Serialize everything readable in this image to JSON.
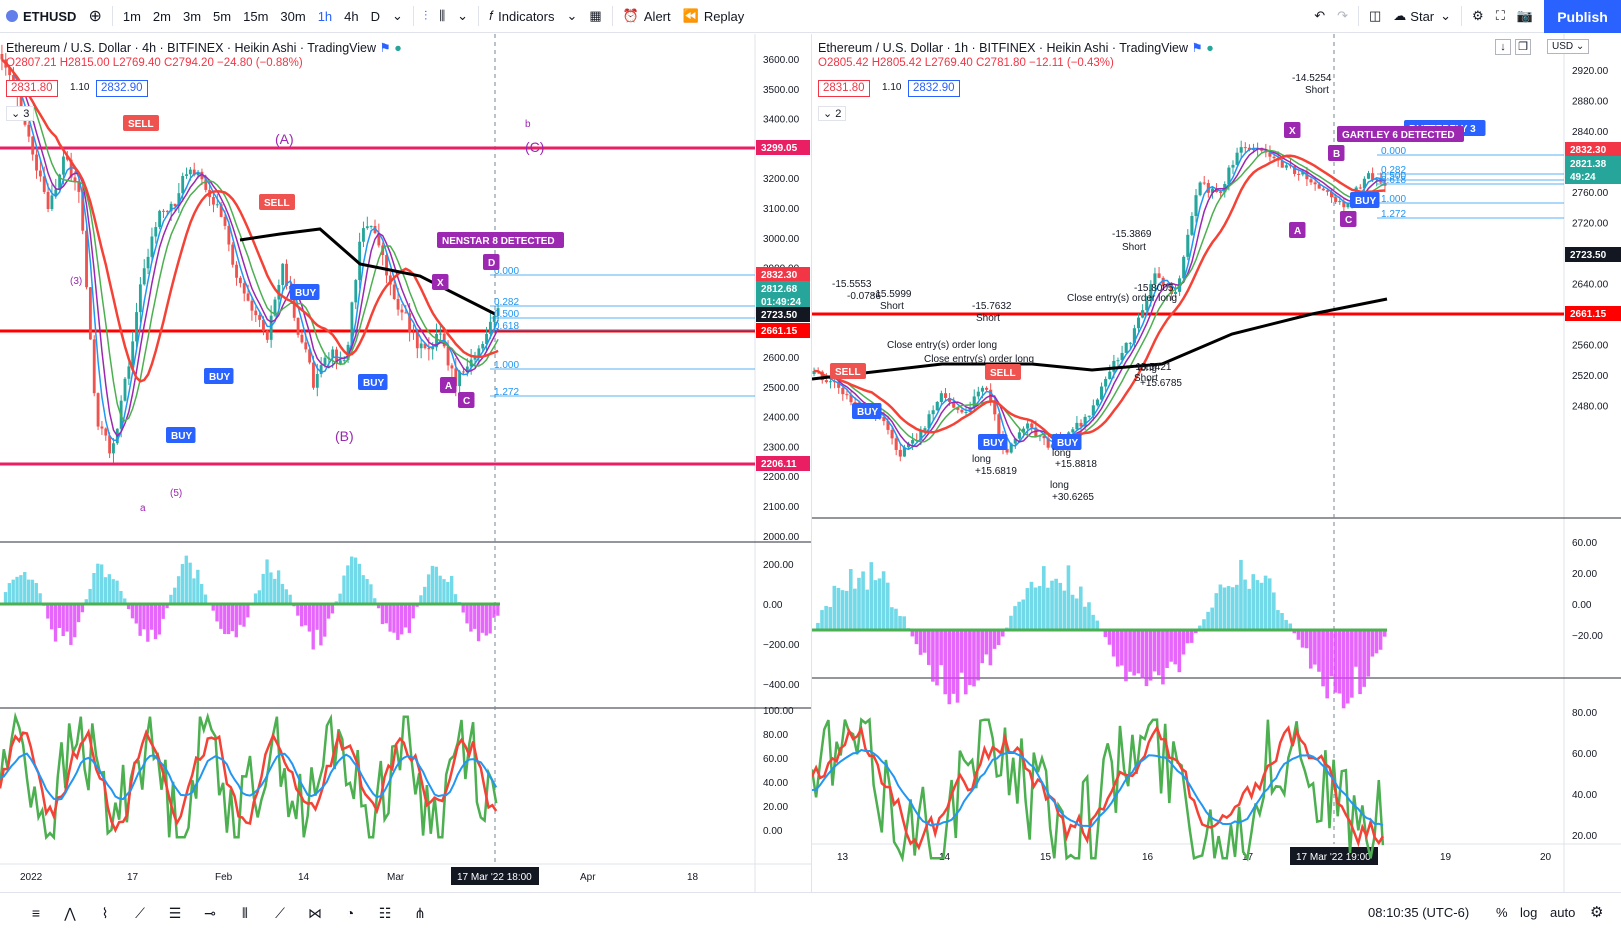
{
  "topbar": {
    "symbol": "ETHUSD",
    "intervals": [
      "1m",
      "2m",
      "3m",
      "5m",
      "15m",
      "30m",
      "1h",
      "4h",
      "D"
    ],
    "indicators_label": "Indicators",
    "alert_label": "Alert",
    "replay_label": "Replay",
    "layout_name": "Star",
    "publish_label": "Publish"
  },
  "left_pane": {
    "title": "Ethereum / U.S. Dollar · 4h · BITFINEX · Heikin Ashi · TradingView",
    "ohlc_o": "O2807.21",
    "ohlc_h": "H2815.00",
    "ohlc_l": "L2769.40",
    "ohlc_c": "C2794.20",
    "ohlc_chg": "−24.80 (−0.88%)",
    "bid": "2831.80",
    "spread": "1.10",
    "ask": "2832.90",
    "studies_count": "3",
    "price_ticks": [
      "3600.00",
      "3500.00",
      "3400.00",
      "3300.00",
      "3200.00",
      "3100.00",
      "3000.00",
      "2900.00",
      "2800.00",
      "2700.00",
      "2600.00",
      "2500.00",
      "2400.00",
      "2300.00",
      "2200.00",
      "2100.00",
      "2000.00"
    ],
    "price_tags": [
      "3299.05",
      "2832.30",
      "2812.68",
      "01:49:24",
      "2723.50",
      "2661.15",
      "2206.11"
    ],
    "osc1_ticks": [
      "200.00",
      "0.00",
      "−200.00",
      "−400.00"
    ],
    "osc2_ticks": [
      "100.00",
      "80.00",
      "60.00",
      "40.00",
      "20.00",
      "0.00"
    ],
    "time_ticks": [
      "2022",
      "17",
      "Feb",
      "14",
      "Mar",
      "Apr",
      "18"
    ],
    "crosshair_time": "17 Mar '22  18:00",
    "pattern_label": "NENSTAR 8 DETECTED",
    "wave_labels": [
      "(A)",
      "(B)",
      "(C)",
      "(3)",
      "(5)",
      "a",
      "b"
    ],
    "signal_labels": [
      "SELL",
      "BUY",
      "X",
      "A",
      "C",
      "D"
    ],
    "fib_labels": [
      "0.000",
      "0.282",
      "0.500",
      "0.618",
      "1.000",
      "1.272"
    ]
  },
  "right_pane": {
    "title": "Ethereum / U.S. Dollar · 1h · BITFINEX · Heikin Ashi · TradingView",
    "ohlc_o": "O2805.42",
    "ohlc_h": "H2805.42",
    "ohlc_l": "L2769.40",
    "ohlc_c": "C2781.80",
    "ohlc_chg": "−12.11 (−0.43%)",
    "bid": "2831.80",
    "spread": "1.10",
    "ask": "2832.90",
    "studies_count": "2",
    "currency": "USD",
    "price_ticks": [
      "2920.00",
      "2880.00",
      "2840.00",
      "2800.00",
      "2760.00",
      "2720.00",
      "2680.00",
      "2640.00",
      "2600.00",
      "2560.00",
      "2520.00",
      "2480.00"
    ],
    "price_tags": [
      "2832.30",
      "2821.38",
      "49:24",
      "2723.50",
      "2661.15"
    ],
    "osc1_ticks": [
      "60.00",
      "20.00",
      "0.00",
      "−20.00"
    ],
    "osc2_ticks": [
      "80.00",
      "60.00",
      "40.00",
      "20.00"
    ],
    "time_ticks": [
      "13",
      "14",
      "15",
      "16",
      "17",
      "19",
      "20"
    ],
    "crosshair_time": "17 Mar '22  19:00",
    "pattern_label": "BUTTERFLY 3",
    "pattern_label2": "GARTLEY 6 DETECTED",
    "fib_labels": [
      "0.000",
      "0.282",
      "0.500",
      "0.618",
      "1.000",
      "1.272"
    ],
    "trade_labels": [
      "-14.5254",
      "Short",
      "-15.3869",
      "Short",
      "-15.5999",
      "Short",
      "-15.7632",
      "Short",
      "-15.8005",
      "Close entry(s) order long",
      "Close entry(s) order long",
      "long",
      "+15.6785",
      "long",
      "+15.6819",
      "long",
      "+15.8818",
      "long",
      "+30.6265",
      "-15.5421",
      "Short",
      "-15.5553",
      "-0.0786",
      "Close entry(s) order long"
    ]
  },
  "bottombar": {
    "clock": "08:10:35 (UTC-6)",
    "percent_label": "%",
    "log_label": "log",
    "auto_label": "auto"
  },
  "colors": {
    "accent": "#2962ff",
    "up": "#26a69a",
    "down": "#ef5350",
    "magenta": "#9c27b0",
    "hline_pink": "#e91e63",
    "hline_red": "#ff0000"
  }
}
